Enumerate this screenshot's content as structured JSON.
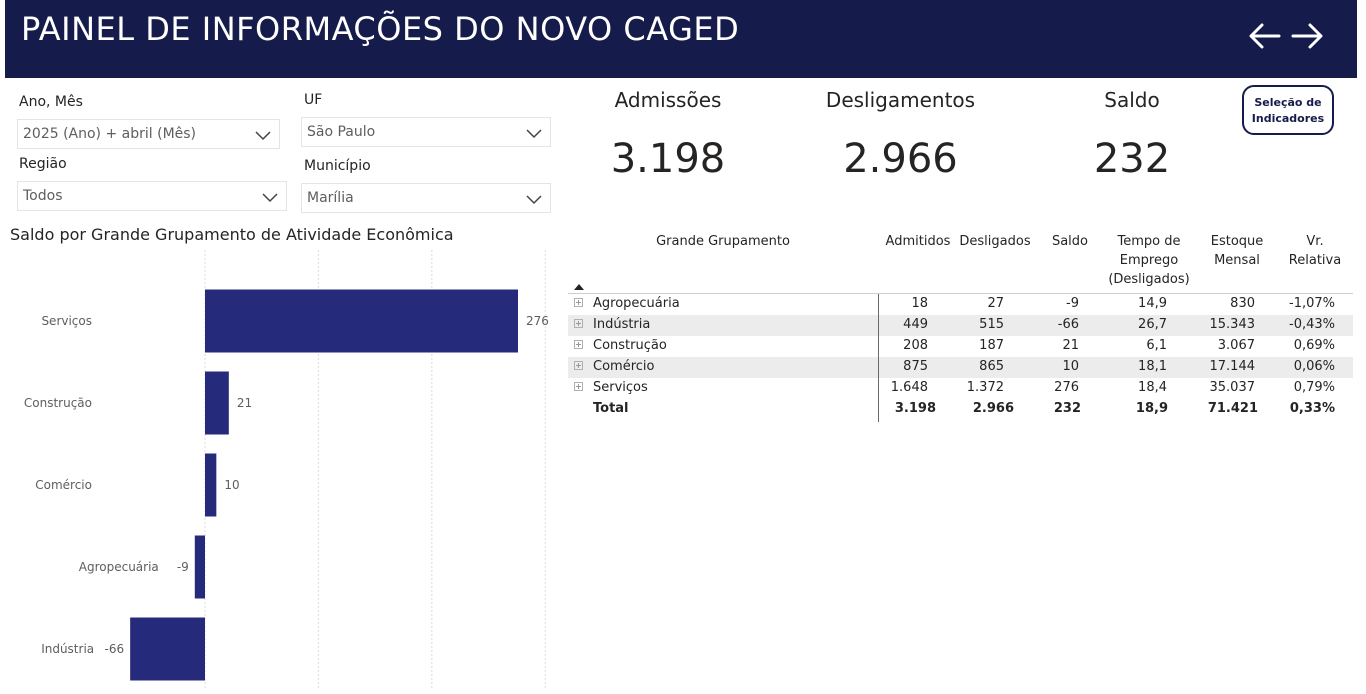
{
  "header": {
    "title": "PAINEL DE INFORMAÇÕES DO NOVO CAGED",
    "back_icon": "arrow-left-icon",
    "forward_icon": "arrow-right-icon"
  },
  "filters": {
    "ano_mes": {
      "label": "Ano, Mês",
      "value": "2025 (Ano) + abril (Mês)"
    },
    "uf": {
      "label": "UF",
      "value": "São Paulo"
    },
    "regiao": {
      "label": "Região",
      "value": "Todos"
    },
    "municipio": {
      "label": "Município",
      "value": "Marília"
    }
  },
  "kpis": {
    "admissoes": {
      "label": "Admissões",
      "value": "3.198"
    },
    "desligamentos": {
      "label": "Desligamentos",
      "value": "2.966"
    },
    "saldo": {
      "label": "Saldo",
      "value": "232"
    }
  },
  "selection_button": {
    "line1": "Seleção de",
    "line2": "Indicadores"
  },
  "colors": {
    "header_bg": "#151b4a",
    "bar": "#252a7a"
  },
  "chart_data": {
    "type": "bar",
    "orientation": "horizontal",
    "title": "Saldo por Grande Grupamento de Atividade Econômica",
    "categories": [
      "Serviços",
      "Construção",
      "Comércio",
      "Agropecuária",
      "Indústria"
    ],
    "values": [
      276,
      21,
      10,
      -9,
      -66
    ],
    "xlim": [
      -66,
      300
    ],
    "grid": true
  },
  "table": {
    "headers": {
      "grupamento": "Grande Grupamento",
      "admitidos": "Admitidos",
      "desligados": "Desligados",
      "saldo": "Saldo",
      "tempo_l1": "Tempo de",
      "tempo_l2": "Emprego",
      "tempo_l3": "(Desligados)",
      "estoque_l1": "Estoque",
      "estoque_l2": "Mensal",
      "vr_l1": "Vr.",
      "vr_l2": "Relativa"
    },
    "rows": [
      {
        "grupamento": "Agropecuária",
        "admitidos": "18",
        "desligados": "27",
        "saldo": "-9",
        "tempo": "14,9",
        "estoque": "830",
        "vr": "-1,07%"
      },
      {
        "grupamento": "Indústria",
        "admitidos": "449",
        "desligados": "515",
        "saldo": "-66",
        "tempo": "26,7",
        "estoque": "15.343",
        "vr": "-0,43%"
      },
      {
        "grupamento": "Construção",
        "admitidos": "208",
        "desligados": "187",
        "saldo": "21",
        "tempo": "6,1",
        "estoque": "3.067",
        "vr": "0,69%"
      },
      {
        "grupamento": "Comércio",
        "admitidos": "875",
        "desligados": "865",
        "saldo": "10",
        "tempo": "18,1",
        "estoque": "17.144",
        "vr": "0,06%"
      },
      {
        "grupamento": "Serviços",
        "admitidos": "1.648",
        "desligados": "1.372",
        "saldo": "276",
        "tempo": "18,4",
        "estoque": "35.037",
        "vr": "0,79%"
      }
    ],
    "total": {
      "grupamento": "Total",
      "admitidos": "3.198",
      "desligados": "2.966",
      "saldo": "232",
      "tempo": "18,9",
      "estoque": "71.421",
      "vr": "0,33%"
    }
  }
}
